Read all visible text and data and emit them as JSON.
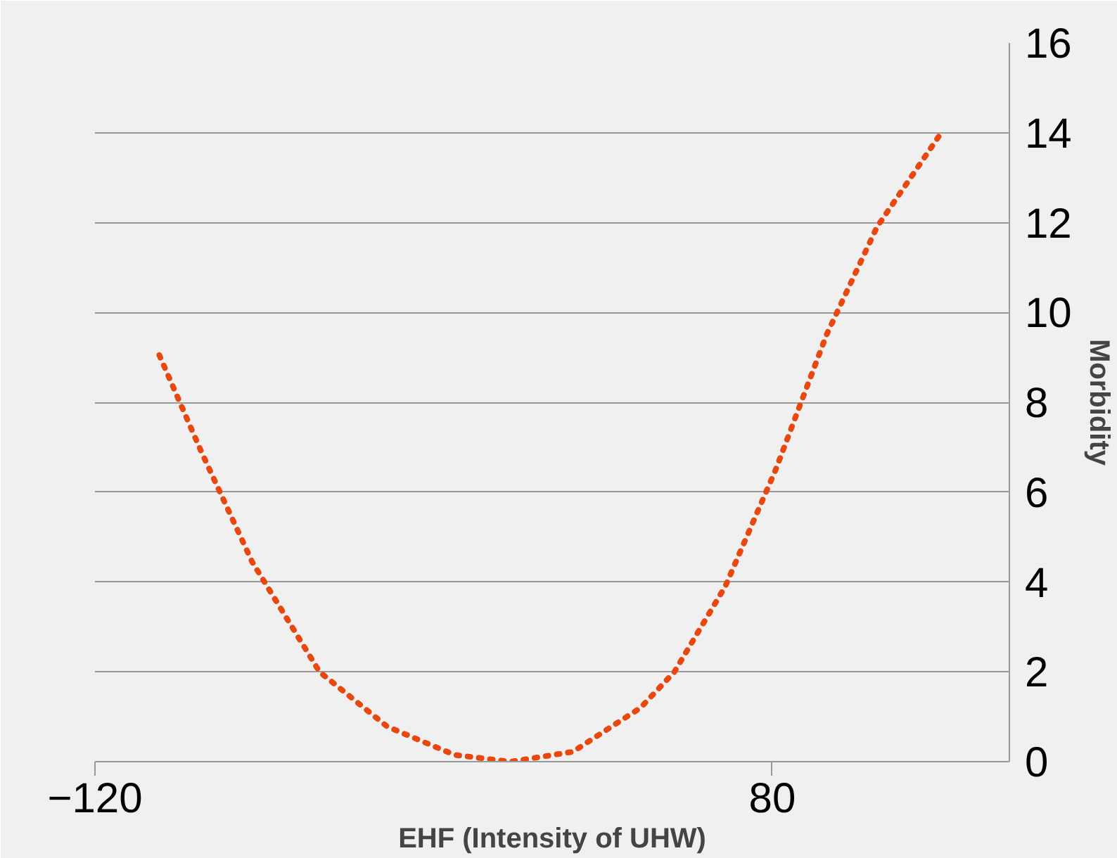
{
  "chart_data": {
    "type": "line",
    "xlabel": "EHF (Intensity of UHW)",
    "ylabel": "Morbidity",
    "xlim": [
      -120,
      150
    ],
    "xticks": [
      -120,
      80
    ],
    "ylim": [
      0,
      16
    ],
    "yticks": [
      0,
      2,
      4,
      6,
      8,
      10,
      12,
      14,
      16
    ],
    "grid": "y",
    "marker": "none",
    "line_style": "dotted",
    "series": [
      {
        "color": "#e8470f",
        "x": [
          -101,
          -88.6,
          -73.6,
          -53.7,
          -33.7,
          -13.8,
          2.7,
          21.1,
          41.1,
          51.1,
          66.1,
          81,
          96,
          110.9,
          129.9
        ],
        "values": [
          9.05,
          6.9,
          4.45,
          2.0,
          0.78,
          0.15,
          0,
          0.22,
          1.2,
          2.0,
          3.9,
          6.5,
          9.5,
          11.9,
          14.0
        ]
      }
    ]
  }
}
